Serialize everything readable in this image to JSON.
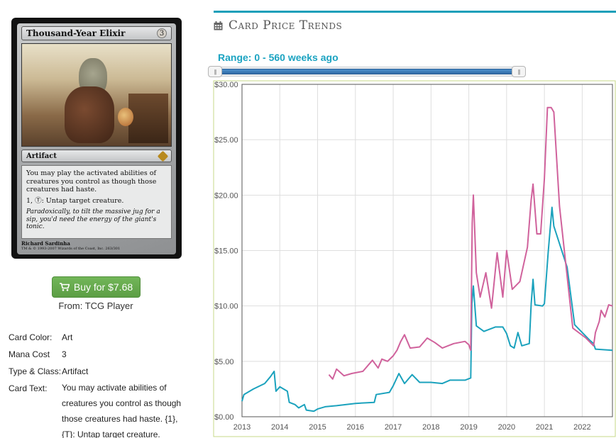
{
  "card": {
    "title": "Thousand-Year Elixir",
    "cost": "3",
    "type_line": "Artifact",
    "rules": "You may play the activated abilities of creatures you control as though those creatures had haste.",
    "ability": "1, Ⓣ: Untap target creature.",
    "flavor": "Paradoxically, to tilt the massive jug for a sip, you'd need the energy of the giant's tonic.",
    "artist": "Richard Sardinha",
    "copyright": "TM & © 1993-2007 Wizards of the Coast, Inc. 263/301"
  },
  "buy": {
    "label": "Buy for $7.68",
    "from": "From: TCG Player",
    "icon": "shopping-cart-icon",
    "color": "#5fa447"
  },
  "info": {
    "color_label": "Card Color:",
    "color_value": "Art",
    "mana_label": "Mana Cost",
    "mana_value": "3",
    "type_label": "Type & Class:",
    "type_value": "Artifact",
    "text_label": "Card Text:",
    "text_value": "You may activate abilities of creatures you control as though those creatures had haste. {1}, {T}: Untap target creature."
  },
  "trends": {
    "title": "Card Price Trends",
    "icon": "calendar-icon",
    "range_label": "Range: 0 - 560 weeks ago",
    "accent_color": "#1a9fb9"
  },
  "chart_data": {
    "type": "line",
    "xlabel": "",
    "ylabel": "",
    "xlim": [
      2013.0,
      2022.8
    ],
    "ylim": [
      0,
      30
    ],
    "y_ticks": [
      "$0.00",
      "$5.00",
      "$10.00",
      "$15.00",
      "$20.00",
      "$25.00",
      "$30.00"
    ],
    "x_ticks": [
      "2013",
      "2014",
      "2015",
      "2016",
      "2017",
      "2018",
      "2019",
      "2020",
      "2021",
      "2022"
    ],
    "grid": true,
    "series": [
      {
        "color": "#1ba2bd",
        "points": [
          [
            2013.0,
            1.4
          ],
          [
            2013.05,
            2.0
          ],
          [
            2013.3,
            2.5
          ],
          [
            2013.6,
            3.0
          ],
          [
            2013.75,
            3.6
          ],
          [
            2013.85,
            4.1
          ],
          [
            2013.9,
            2.3
          ],
          [
            2014.0,
            2.7
          ],
          [
            2014.2,
            2.3
          ],
          [
            2014.25,
            1.3
          ],
          [
            2014.4,
            1.1
          ],
          [
            2014.5,
            0.8
          ],
          [
            2014.65,
            1.1
          ],
          [
            2014.7,
            0.6
          ],
          [
            2014.9,
            0.5
          ],
          [
            2015.0,
            0.7
          ],
          [
            2015.2,
            0.9
          ],
          [
            2015.5,
            1.0
          ],
          [
            2016.0,
            1.2
          ],
          [
            2016.5,
            1.3
          ],
          [
            2016.55,
            2.0
          ],
          [
            2016.9,
            2.2
          ],
          [
            2017.0,
            2.8
          ],
          [
            2017.15,
            3.9
          ],
          [
            2017.3,
            3.0
          ],
          [
            2017.5,
            3.8
          ],
          [
            2017.7,
            3.1
          ],
          [
            2018.0,
            3.1
          ],
          [
            2018.3,
            3.0
          ],
          [
            2018.5,
            3.3
          ],
          [
            2018.9,
            3.3
          ],
          [
            2019.05,
            3.5
          ],
          [
            2019.08,
            10.2
          ],
          [
            2019.12,
            11.8
          ],
          [
            2019.2,
            8.2
          ],
          [
            2019.4,
            7.7
          ],
          [
            2019.7,
            8.1
          ],
          [
            2019.9,
            8.1
          ],
          [
            2020.0,
            7.5
          ],
          [
            2020.1,
            6.4
          ],
          [
            2020.2,
            6.2
          ],
          [
            2020.3,
            7.6
          ],
          [
            2020.4,
            6.4
          ],
          [
            2020.6,
            6.6
          ],
          [
            2020.65,
            10.2
          ],
          [
            2020.7,
            12.4
          ],
          [
            2020.75,
            10.1
          ],
          [
            2020.95,
            10.0
          ],
          [
            2021.0,
            10.2
          ],
          [
            2021.1,
            14.8
          ],
          [
            2021.2,
            18.9
          ],
          [
            2021.25,
            17.2
          ],
          [
            2021.6,
            13.5
          ],
          [
            2021.8,
            8.3
          ],
          [
            2022.2,
            6.9
          ],
          [
            2022.3,
            6.6
          ],
          [
            2022.35,
            6.1
          ],
          [
            2022.8,
            6.0
          ]
        ]
      },
      {
        "color": "#d0629c",
        "points": [
          [
            2015.3,
            3.8
          ],
          [
            2015.4,
            3.4
          ],
          [
            2015.5,
            4.3
          ],
          [
            2015.7,
            3.7
          ],
          [
            2015.9,
            3.9
          ],
          [
            2016.2,
            4.1
          ],
          [
            2016.45,
            5.1
          ],
          [
            2016.6,
            4.4
          ],
          [
            2016.7,
            5.2
          ],
          [
            2016.85,
            5.0
          ],
          [
            2017.0,
            5.5
          ],
          [
            2017.1,
            6.0
          ],
          [
            2017.2,
            6.8
          ],
          [
            2017.3,
            7.4
          ],
          [
            2017.45,
            6.2
          ],
          [
            2017.7,
            6.3
          ],
          [
            2017.9,
            7.1
          ],
          [
            2018.1,
            6.7
          ],
          [
            2018.3,
            6.2
          ],
          [
            2018.6,
            6.6
          ],
          [
            2018.9,
            6.8
          ],
          [
            2019.0,
            6.5
          ],
          [
            2019.05,
            6.0
          ],
          [
            2019.09,
            17.5
          ],
          [
            2019.12,
            20.0
          ],
          [
            2019.2,
            13.0
          ],
          [
            2019.3,
            10.8
          ],
          [
            2019.45,
            13.0
          ],
          [
            2019.6,
            9.8
          ],
          [
            2019.75,
            14.8
          ],
          [
            2019.9,
            10.8
          ],
          [
            2020.0,
            15.0
          ],
          [
            2020.15,
            11.5
          ],
          [
            2020.35,
            12.2
          ],
          [
            2020.55,
            15.3
          ],
          [
            2020.65,
            19.6
          ],
          [
            2020.7,
            21.0
          ],
          [
            2020.8,
            16.5
          ],
          [
            2020.9,
            16.5
          ],
          [
            2021.0,
            21.5
          ],
          [
            2021.08,
            27.9
          ],
          [
            2021.18,
            27.9
          ],
          [
            2021.25,
            27.5
          ],
          [
            2021.4,
            19.0
          ],
          [
            2021.75,
            8.0
          ],
          [
            2022.1,
            7.1
          ],
          [
            2022.3,
            6.4
          ],
          [
            2022.35,
            7.6
          ],
          [
            2022.45,
            8.6
          ],
          [
            2022.5,
            9.6
          ],
          [
            2022.6,
            9.0
          ],
          [
            2022.7,
            10.1
          ],
          [
            2022.8,
            10.0
          ]
        ]
      }
    ]
  }
}
